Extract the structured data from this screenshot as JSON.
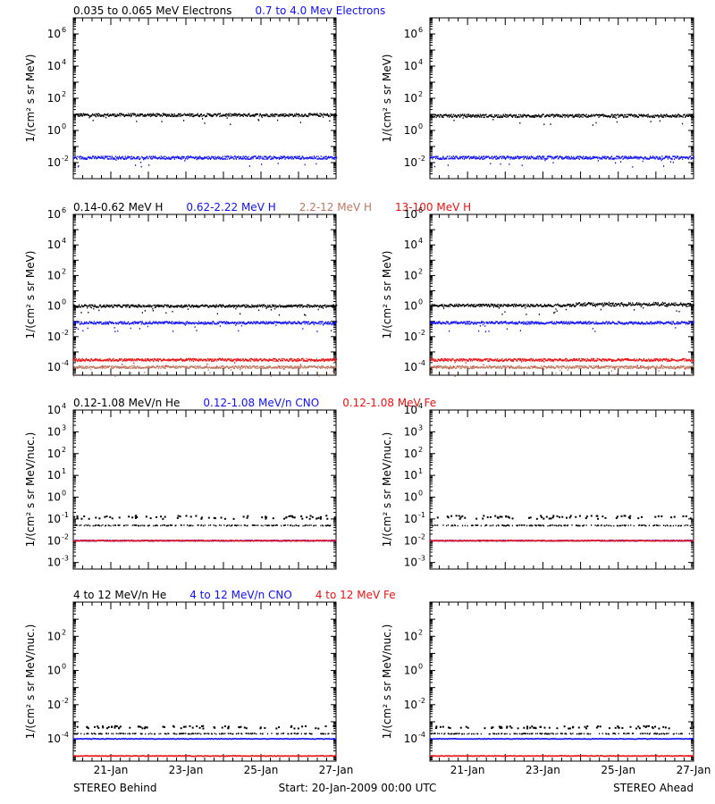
{
  "colors": {
    "black": "#000000",
    "blue": "#1010ff",
    "red": "#ee1111",
    "tan": "#c07860"
  },
  "chart_data": [
    {
      "type": "scatter",
      "scale": "log",
      "ylabel": "1/(cm² s sr MeV)",
      "ylim": [
        0.001,
        10000000
      ],
      "yticks": [
        {
          "v": 0.01,
          "m": "10",
          "e": "-2"
        },
        {
          "v": 1,
          "m": "10",
          "e": "0"
        },
        {
          "v": 100,
          "m": "10",
          "e": "2"
        },
        {
          "v": 10000,
          "m": "10",
          "e": "4"
        },
        {
          "v": 1000000,
          "m": "10",
          "e": "6"
        }
      ],
      "legend": [
        {
          "text": "0.035 to 0.065 MeV Electrons",
          "color": "#000000"
        },
        {
          "text": "0.7 to 4.0 Mev Electrons",
          "color": "#1010ff"
        }
      ],
      "series": [
        {
          "name": "0.035 to 0.065 MeV Electrons",
          "color": "#000000",
          "base_behind": 9,
          "base_ahead": 8
        },
        {
          "name": "0.7 to 4.0 Mev Electrons",
          "color": "#1010ff",
          "base_behind": 0.02,
          "base_ahead": 0.02
        }
      ]
    },
    {
      "type": "scatter",
      "scale": "log",
      "ylabel": "1/(cm² s sr MeV)",
      "ylim": [
        3e-05,
        1000000
      ],
      "yticks": [
        {
          "v": 0.0001,
          "m": "10",
          "e": "-4"
        },
        {
          "v": 0.01,
          "m": "10",
          "e": "-2"
        },
        {
          "v": 1,
          "m": "10",
          "e": "0"
        },
        {
          "v": 100,
          "m": "10",
          "e": "2"
        },
        {
          "v": 10000,
          "m": "10",
          "e": "4"
        },
        {
          "v": 1000000,
          "m": "10",
          "e": "6"
        }
      ],
      "legend": [
        {
          "text": "0.14-0.62 MeV H",
          "color": "#000000"
        },
        {
          "text": "0.62-2.22 MeV H",
          "color": "#1010ff"
        },
        {
          "text": "2.2-12 MeV H",
          "color": "#c07860"
        },
        {
          "text": "13-100 MeV H",
          "color": "#ee1111"
        }
      ],
      "series": [
        {
          "name": "0.14-0.62 MeV H",
          "color": "#000000",
          "base_behind": 1,
          "base_ahead": 1.1
        },
        {
          "name": "0.62-2.22 MeV H",
          "color": "#1010ff",
          "base_behind": 0.08,
          "base_ahead": 0.08
        },
        {
          "name": "2.2-12 MeV H",
          "color": "#c07860",
          "base_behind": 0.0001,
          "base_ahead": 0.0001
        },
        {
          "name": "13-100 MeV H",
          "color": "#ee1111",
          "base_behind": 0.0003,
          "base_ahead": 0.0003
        }
      ]
    },
    {
      "type": "scatter",
      "scale": "log",
      "ylabel": "1/(cm² s sr MeV/nuc.)",
      "ylim": [
        0.0005,
        10000
      ],
      "yticks": [
        {
          "v": 0.001,
          "m": "10",
          "e": "-3"
        },
        {
          "v": 0.01,
          "m": "10",
          "e": "-2"
        },
        {
          "v": 0.1,
          "m": "10",
          "e": "-1"
        },
        {
          "v": 1,
          "m": "10",
          "e": "0"
        },
        {
          "v": 10,
          "m": "10",
          "e": "1"
        },
        {
          "v": 100,
          "m": "10",
          "e": "2"
        },
        {
          "v": 1000,
          "m": "10",
          "e": "3"
        },
        {
          "v": 10000,
          "m": "10",
          "e": "4"
        }
      ],
      "legend": [
        {
          "text": "0.12-1.08 MeV/n He",
          "color": "#000000"
        },
        {
          "text": "0.12-1.08 MeV/n CNO",
          "color": "#1010ff"
        },
        {
          "text": "0.12-1.08 MeV Fe",
          "color": "#ee1111"
        }
      ],
      "series": [
        {
          "name": "0.12-1.08 MeV/n He",
          "color": "#000000",
          "base_behind": 0.05,
          "base_ahead": 0.05
        },
        {
          "name": "0.12-1.08 MeV/n CNO",
          "color": "#1010ff",
          "base_behind": 0.01,
          "base_ahead": 0.01
        },
        {
          "name": "0.12-1.08 MeV Fe",
          "color": "#ee1111",
          "base_behind": 0.01,
          "base_ahead": 0.01
        }
      ]
    },
    {
      "type": "scatter",
      "scale": "log",
      "ylabel": "1/(cm² s sr MeV/nuc.)",
      "ylim": [
        5e-06,
        10000
      ],
      "yticks": [
        {
          "v": 0.0001,
          "m": "10",
          "e": "-4"
        },
        {
          "v": 0.01,
          "m": "10",
          "e": "-2"
        },
        {
          "v": 1,
          "m": "10",
          "e": "0"
        },
        {
          "v": 100,
          "m": "10",
          "e": "2"
        }
      ],
      "legend": [
        {
          "text": "4 to 12 MeV/n He",
          "color": "#000000"
        },
        {
          "text": "4 to 12 MeV/n CNO",
          "color": "#1010ff"
        },
        {
          "text": "4 to 12 MeV Fe",
          "color": "#ee1111"
        }
      ],
      "series": [
        {
          "name": "4 to 12 MeV/n He",
          "color": "#000000",
          "base_behind": 0.0002,
          "base_ahead": 0.0002
        },
        {
          "name": "4 to 12 MeV/n CNO",
          "color": "#1010ff",
          "base_behind": 0.0001,
          "base_ahead": 0.0001
        },
        {
          "name": "4 to 12 MeV Fe",
          "color": "#ee1111",
          "base_behind": 1e-05,
          "base_ahead": 1e-05
        }
      ]
    }
  ],
  "x_axis": {
    "range": [
      "2009-01-20",
      "2009-01-27"
    ],
    "tick_labels": [
      "21-Jan",
      "23-Jan",
      "25-Jan",
      "27-Jan"
    ]
  },
  "footer": {
    "left": "STEREO Behind",
    "center": "Start: 20-Jan-2009 00:00 UTC",
    "right": "STEREO Ahead"
  }
}
